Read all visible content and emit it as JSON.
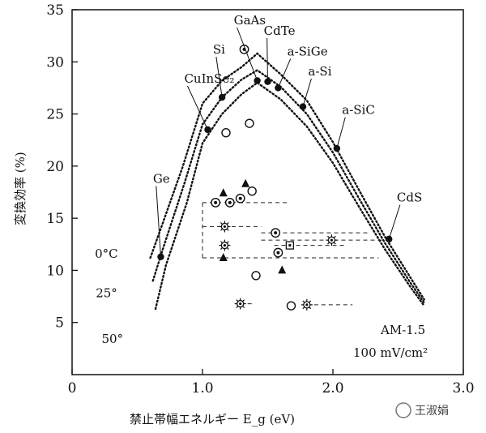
{
  "chart_data": {
    "type": "line",
    "title": "",
    "xlabel": "禁止帯幅エネルギー  E_g (eV)",
    "ylabel": "変換効率  (%)",
    "xlim": [
      0,
      3.0
    ],
    "ylim": [
      0,
      35
    ],
    "x_ticks": [
      "0",
      "1.0",
      "2.0",
      "3.0"
    ],
    "x_tick_values": [
      0,
      1.0,
      2.0,
      3.0
    ],
    "y_ticks": [
      "5",
      "10",
      "15",
      "20",
      "25",
      "30",
      "35"
    ],
    "y_tick_values": [
      5,
      10,
      15,
      20,
      25,
      30,
      35
    ],
    "grid": false,
    "conditions": [
      "AM-1.5",
      "100 mV/cm²"
    ],
    "series": [
      {
        "name": "0°C",
        "line_style": "dotted",
        "x": [
          0.6,
          0.68,
          0.85,
          1.0,
          1.15,
          1.3,
          1.42,
          1.6,
          1.8,
          2.0,
          2.2,
          2.4,
          2.6,
          2.7
        ],
        "y": [
          11.2,
          14.0,
          20.0,
          26.0,
          28.2,
          29.5,
          30.8,
          28.8,
          26.3,
          22.3,
          17.7,
          13.2,
          9.2,
          7.2
        ]
      },
      {
        "name": "25°",
        "line_style": "dotted",
        "x": [
          0.62,
          0.7,
          0.86,
          1.0,
          1.15,
          1.3,
          1.42,
          1.6,
          1.8,
          2.0,
          2.2,
          2.4,
          2.6,
          2.7
        ],
        "y": [
          9.0,
          12.2,
          18.3,
          24.0,
          26.6,
          28.3,
          29.2,
          27.6,
          25.0,
          21.3,
          16.9,
          12.6,
          8.7,
          6.9
        ]
      },
      {
        "name": "50°",
        "line_style": "dotted",
        "x": [
          0.64,
          0.72,
          0.88,
          1.0,
          1.15,
          1.3,
          1.42,
          1.6,
          1.8,
          2.0,
          2.2,
          2.4,
          2.6,
          2.7
        ],
        "y": [
          6.3,
          10.5,
          16.5,
          22.2,
          25.0,
          26.9,
          28.0,
          26.4,
          23.8,
          20.3,
          16.1,
          12.0,
          8.3,
          6.6
        ]
      }
    ],
    "materials": [
      {
        "label": "Ge",
        "x": 0.68,
        "y": 11.3
      },
      {
        "label": "CuInSe₂",
        "x": 1.04,
        "y": 23.5
      },
      {
        "label": "Si",
        "x": 1.15,
        "y": 26.6
      },
      {
        "label": "GaAs",
        "x": 1.42,
        "y": 28.2
      },
      {
        "label": "CdTe",
        "x": 1.5,
        "y": 28.1
      },
      {
        "label": "a-SiGe",
        "x": 1.58,
        "y": 27.5
      },
      {
        "label": "a-Si",
        "x": 1.77,
        "y": 25.7
      },
      {
        "label": "a-SiC",
        "x": 2.03,
        "y": 21.7
      },
      {
        "label": "CdS",
        "x": 2.43,
        "y": 13.0
      }
    ],
    "measured_points": [
      {
        "marker": "target",
        "x": 1.32,
        "y": 31.2
      },
      {
        "marker": "open-circle",
        "x": 1.18,
        "y": 23.2
      },
      {
        "marker": "open-circle",
        "x": 1.36,
        "y": 24.1
      },
      {
        "marker": "open-circle",
        "x": 1.38,
        "y": 17.6
      },
      {
        "marker": "open-circle",
        "x": 1.41,
        "y": 9.5
      },
      {
        "marker": "open-circle",
        "x": 1.68,
        "y": 6.6
      },
      {
        "marker": "triangle",
        "x": 1.16,
        "y": 17.4
      },
      {
        "marker": "triangle",
        "x": 1.33,
        "y": 18.3
      },
      {
        "marker": "triangle",
        "x": 1.16,
        "y": 11.2
      },
      {
        "marker": "triangle",
        "x": 1.61,
        "y": 10.0
      },
      {
        "marker": "target",
        "x": 1.1,
        "y": 16.5
      },
      {
        "marker": "target",
        "x": 1.21,
        "y": 16.5
      },
      {
        "marker": "target",
        "x": 1.29,
        "y": 16.9
      },
      {
        "marker": "target",
        "x": 1.56,
        "y": 13.6
      },
      {
        "marker": "target",
        "x": 1.58,
        "y": 11.7
      },
      {
        "marker": "star",
        "x": 1.17,
        "y": 14.2
      },
      {
        "marker": "star",
        "x": 1.17,
        "y": 12.4
      },
      {
        "marker": "star",
        "x": 1.29,
        "y": 6.8
      },
      {
        "marker": "star",
        "x": 1.8,
        "y": 6.7
      },
      {
        "marker": "star",
        "x": 1.99,
        "y": 12.9
      },
      {
        "marker": "square",
        "x": 1.67,
        "y": 12.4
      }
    ]
  },
  "watermark": "王淑娟"
}
